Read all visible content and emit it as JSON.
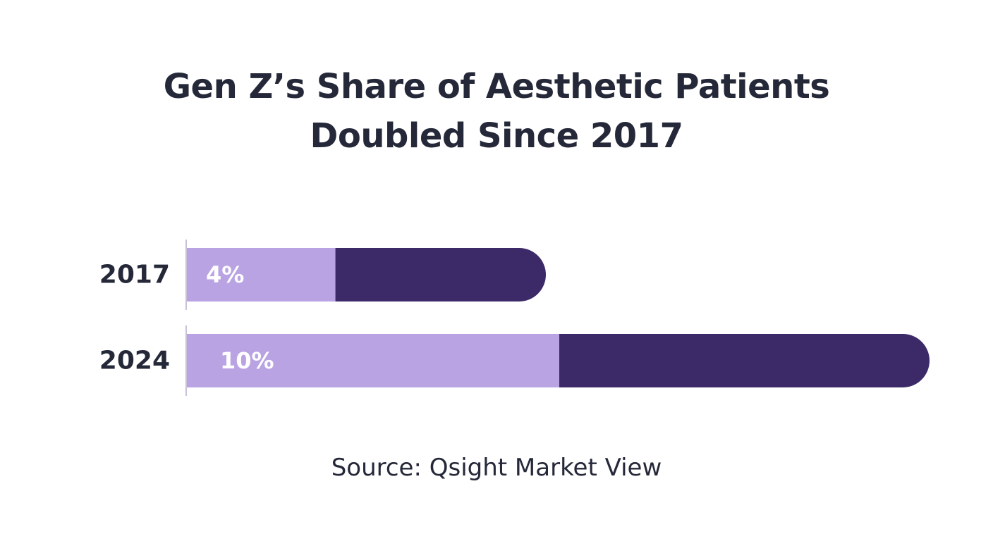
{
  "title": {
    "line1": "Gen Z’s Share of Aesthetic Patients",
    "line2": "Doubled Since 2017"
  },
  "source": "Source: Qsight Market View",
  "colors": {
    "share": "#b9a3e3",
    "remainder": "#3c2a68",
    "text": "#252838",
    "axis": "#c8c2d8",
    "value_label": "#ffffff"
  },
  "chart_data": {
    "type": "bar",
    "orientation": "horizontal",
    "categories": [
      "2017",
      "2024"
    ],
    "values": [
      4,
      10
    ],
    "value_labels": [
      "4%",
      "10%"
    ],
    "unit": "%",
    "title": "Gen Z’s Share of Aesthetic Patients Doubled Since 2017",
    "xlabel": "",
    "ylabel": "",
    "grid": false,
    "legend": "none"
  }
}
